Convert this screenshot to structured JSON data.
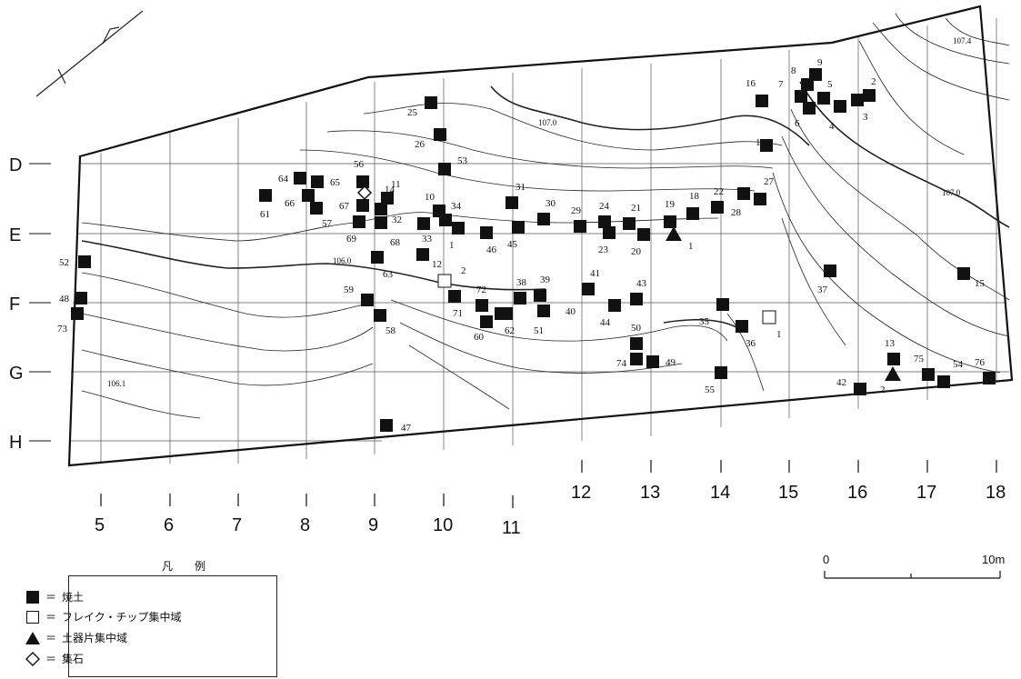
{
  "row_labels": [
    "D",
    "E",
    "F",
    "G",
    "H"
  ],
  "column_labels": [
    "5",
    "6",
    "7",
    "8",
    "9",
    "10",
    "11",
    "12",
    "13",
    "14",
    "15",
    "16",
    "17",
    "18"
  ],
  "contour_labels": [
    "107.4",
    "107.0",
    "107.0",
    "106.0",
    "106.1"
  ],
  "features": {
    "burnt_soil": [
      "1",
      "2",
      "3",
      "4",
      "5",
      "6",
      "7",
      "8",
      "9",
      "10",
      "11",
      "12",
      "13",
      "14",
      "15",
      "16",
      "17",
      "18",
      "19",
      "20",
      "21",
      "22",
      "23",
      "24",
      "25",
      "26",
      "27",
      "28",
      "29",
      "30",
      "31",
      "32",
      "33",
      "34",
      "35",
      "36",
      "37",
      "38",
      "39",
      "40",
      "41",
      "42",
      "43",
      "44",
      "45",
      "46",
      "47",
      "48",
      "49",
      "50",
      "51",
      "52",
      "53",
      "54",
      "55",
      "56",
      "57",
      "58",
      "59",
      "60",
      "61",
      "62",
      "63",
      "64",
      "65",
      "66",
      "67",
      "68",
      "69",
      "71",
      "72",
      "73",
      "74",
      "75",
      "76"
    ],
    "flake_chip": [
      "1",
      "2"
    ],
    "pottery": [
      "1",
      "2"
    ]
  },
  "legend": {
    "title": "凡　例",
    "items": [
      {
        "symbol": "filled-square",
        "eq": "＝",
        "label": "焼土"
      },
      {
        "symbol": "open-square",
        "eq": "＝",
        "label": "フレイク・チップ集中域"
      },
      {
        "symbol": "filled-triangle",
        "eq": "＝",
        "label": "土器片集中域"
      },
      {
        "symbol": "open-diamond",
        "eq": "＝",
        "label": "集石"
      }
    ]
  },
  "scale": {
    "start": "0",
    "end": "10m"
  }
}
